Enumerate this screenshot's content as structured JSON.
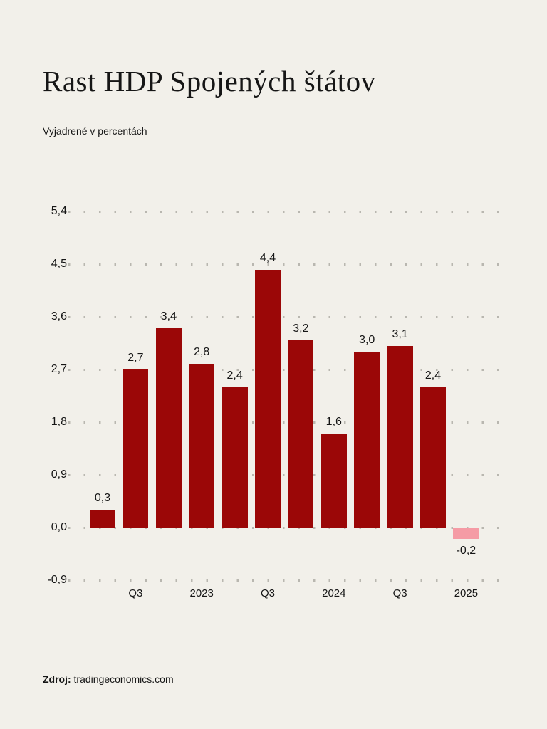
{
  "page": {
    "background_color": "#f2f0ea",
    "title": "Rast HDP Spojených štátov",
    "subtitle": "Vyjadrené v percentách",
    "source_label": "Zdroj:",
    "source_value": "tradingeconomics.com"
  },
  "chart_data": {
    "type": "bar",
    "title": "Rast HDP Spojených štátov",
    "subtitle": "Vyjadrené v percentách",
    "source": "Zdroj: tradingeconomics.com",
    "unit": "percent",
    "values": [
      0.3,
      2.7,
      3.4,
      2.8,
      2.4,
      4.4,
      3.2,
      1.6,
      3.0,
      3.1,
      2.4,
      -0.2
    ],
    "bar_labels": [
      "0,3",
      "2,7",
      "3,4",
      "2,8",
      "2,4",
      "4,4",
      "3,2",
      "1,6",
      "3,0",
      "3,1",
      "2,4",
      "-0,2"
    ],
    "x_axis": {
      "ticks": [
        {
          "label": "Q3",
          "bar_index": 1
        },
        {
          "label": "2023",
          "bar_index": 3
        },
        {
          "label": "Q3",
          "bar_index": 5
        },
        {
          "label": "2024",
          "bar_index": 7
        },
        {
          "label": "Q3",
          "bar_index": 9
        },
        {
          "label": "2025",
          "bar_index": 11
        }
      ]
    },
    "y_axis": {
      "range": [
        -0.9,
        5.4
      ],
      "ticks": [
        {
          "value": 5.4,
          "label": "5,4"
        },
        {
          "value": 4.5,
          "label": "4,5"
        },
        {
          "value": 3.6,
          "label": "3,6"
        },
        {
          "value": 2.7,
          "label": "2,7"
        },
        {
          "value": 1.8,
          "label": "1,8"
        },
        {
          "value": 0.9,
          "label": "0,9"
        },
        {
          "value": 0.0,
          "label": "0,0"
        },
        {
          "value": -0.9,
          "label": "-0,9"
        }
      ]
    },
    "grid": "horizontal-dotted",
    "legend": "none",
    "colors": {
      "bar_positive": "#9b0707",
      "bar_negative": "#f59ba5",
      "grid_dot": "#b9b7b0",
      "text": "#161616",
      "background": "#f2f0ea"
    }
  }
}
